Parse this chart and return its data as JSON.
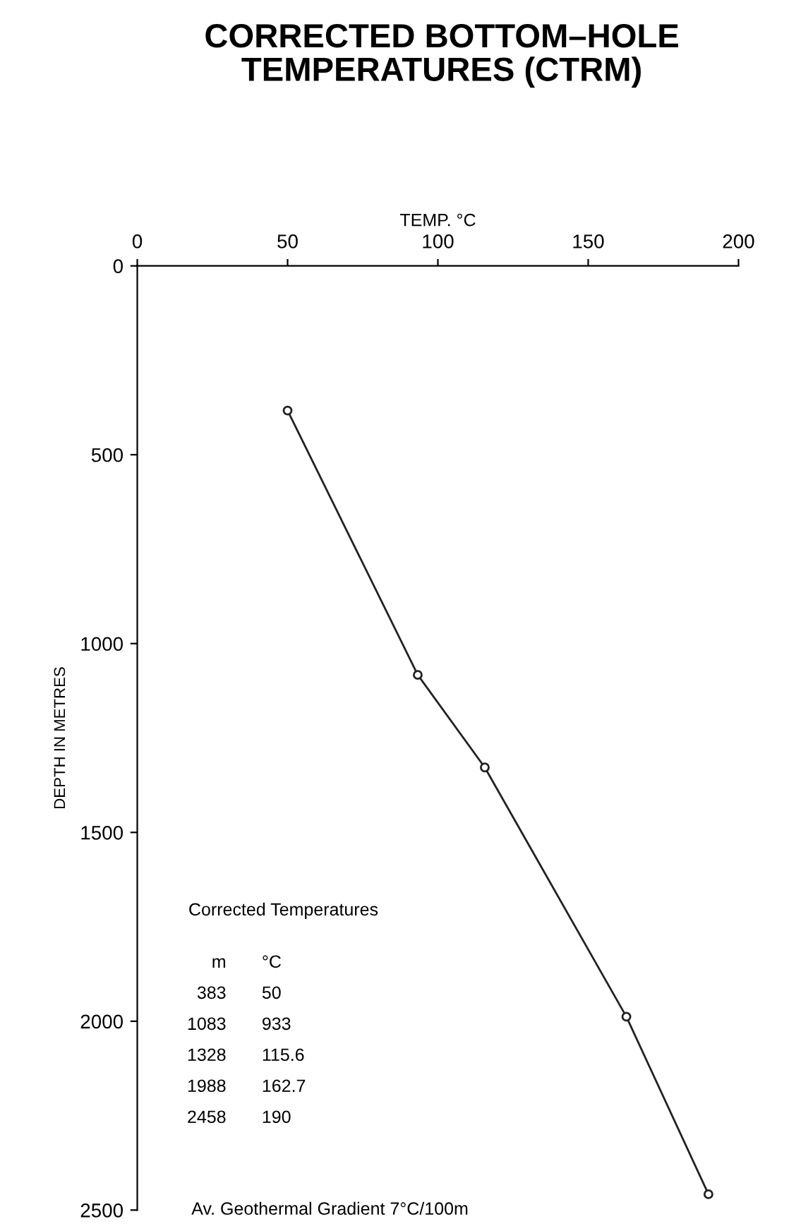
{
  "chart_data": {
    "type": "line",
    "title": "CORRECTED BOTTOM–HOLE\nTEMPERATURES (CTRM)",
    "xlabel": "TEMP. °C",
    "ylabel": "DEPTH IN METRES",
    "x": [
      50,
      93.3,
      115.6,
      162.7,
      190
    ],
    "series": [
      {
        "color": "#222222",
        "values": [
          383,
          1083,
          1328,
          1988,
          2458
        ]
      }
    ],
    "xlim": [
      0,
      200
    ],
    "xticks": [
      0,
      50,
      100,
      150,
      200
    ],
    "ylim": [
      2500,
      0
    ],
    "yticks": [
      0,
      500,
      1000,
      1500,
      2000,
      2500
    ],
    "marker": "circle",
    "line_style": "solid",
    "grid": false,
    "legend": false,
    "annotations": [
      "Corrected Temperatures",
      "m °C",
      "383 50",
      "1083 933",
      "1328 115.6",
      "1988 162.7",
      "2458 190",
      "Av. Geothermal Gradient 7°C/100m"
    ]
  }
}
